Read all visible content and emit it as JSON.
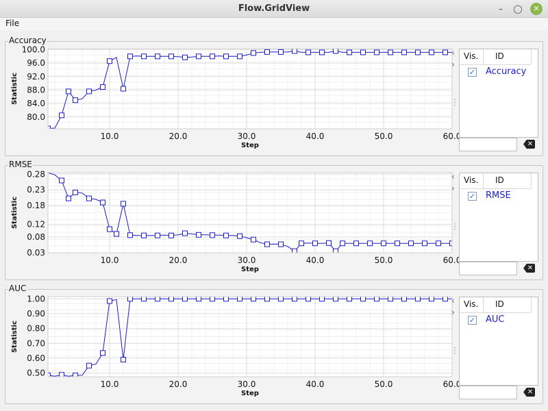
{
  "window": {
    "title": "Flow.GridView"
  },
  "menu": {
    "file": "File"
  },
  "legend_header": {
    "vis": "Vis.",
    "id": "ID"
  },
  "panels": [
    {
      "label": "Accuracy",
      "legend_item": "Accuracy",
      "chart_data": {
        "type": "line",
        "ylabel": "Statistic",
        "xlabel": "Step",
        "xlim": [
          1,
          60
        ],
        "ylim": [
          76.5,
          100.3
        ],
        "yticks": [
          80.0,
          84.0,
          88.0,
          92.0,
          96.0,
          100.0
        ],
        "ytick_labels": [
          "80.0",
          "84.0",
          "88.0",
          "92.0",
          "96.0",
          "100.0"
        ],
        "xticks": [
          10,
          20,
          30,
          40,
          50,
          60
        ],
        "xtick_labels": [
          "10.0",
          "20.0",
          "30.0",
          "40.0",
          "50.0",
          "60.0"
        ],
        "series": [
          {
            "name": "Accuracy",
            "x": [
              1,
              2,
              3,
              4,
              5,
              6,
              7,
              8,
              9,
              10,
              11,
              12,
              13,
              14,
              15,
              16,
              17,
              18,
              19,
              20,
              21,
              22,
              23,
              24,
              25,
              26,
              27,
              28,
              29,
              30,
              31,
              32,
              33,
              34,
              35,
              36,
              37,
              38,
              39,
              40,
              41,
              42,
              43,
              44,
              45,
              46,
              47,
              48,
              49,
              50,
              51,
              52,
              53,
              54,
              55,
              56,
              57,
              58,
              59,
              60
            ],
            "y": [
              76.6,
              76.7,
              80.5,
              87.6,
              85.0,
              85.4,
              87.6,
              88.0,
              88.9,
              96.6,
              97.7,
              88.4,
              98.0,
              98.1,
              98.0,
              98.0,
              98.0,
              98.0,
              98.0,
              97.9,
              97.7,
              97.8,
              98.0,
              98.0,
              98.0,
              98.1,
              98.0,
              98.0,
              98.0,
              98.4,
              99.0,
              99.2,
              99.3,
              99.3,
              99.3,
              99.3,
              99.6,
              99.2,
              99.2,
              99.2,
              99.2,
              99.2,
              99.6,
              99.2,
              99.2,
              99.2,
              99.2,
              99.2,
              99.2,
              99.2,
              99.2,
              99.2,
              99.2,
              99.2,
              99.2,
              99.2,
              99.2,
              99.2,
              99.2,
              99.2
            ],
            "markers": [
              1,
              3,
              4,
              5,
              7,
              9,
              10,
              12,
              13,
              15,
              17,
              19,
              21,
              23,
              25,
              27,
              29,
              31,
              33,
              35,
              37,
              39,
              41,
              43,
              45,
              47,
              49,
              51,
              53,
              55,
              57,
              59
            ]
          }
        ]
      }
    },
    {
      "label": "RMSE",
      "legend_item": "RMSE",
      "chart_data": {
        "type": "line",
        "ylabel": "Statistic",
        "xlabel": "Step",
        "xlim": [
          1,
          60
        ],
        "ylim": [
          0.03,
          0.285
        ],
        "yticks": [
          0.03,
          0.08,
          0.12,
          0.18,
          0.23,
          0.28
        ],
        "ytick_labels": [
          "0.03",
          "0.08",
          "0.12",
          "0.18",
          "0.23",
          "0.28"
        ],
        "xticks": [
          10,
          20,
          30,
          40,
          50,
          60
        ],
        "xtick_labels": [
          "10.0",
          "20.0",
          "30.0",
          "40.0",
          "50.0",
          "60.0"
        ],
        "series": [
          {
            "name": "RMSE",
            "x": [
              1,
              2,
              3,
              4,
              5,
              6,
              7,
              8,
              9,
              10,
              11,
              12,
              13,
              14,
              15,
              16,
              17,
              18,
              19,
              20,
              21,
              22,
              23,
              24,
              25,
              26,
              27,
              28,
              29,
              30,
              31,
              32,
              33,
              34,
              35,
              36,
              37,
              38,
              39,
              40,
              41,
              42,
              43,
              44,
              45,
              46,
              47,
              48,
              49,
              50,
              51,
              52,
              53,
              54,
              55,
              56,
              57,
              58,
              59,
              60
            ],
            "y": [
              0.285,
              0.278,
              0.26,
              0.203,
              0.222,
              0.22,
              0.203,
              0.2,
              0.19,
              0.105,
              0.09,
              0.186,
              0.086,
              0.085,
              0.085,
              0.085,
              0.085,
              0.086,
              0.085,
              0.087,
              0.092,
              0.09,
              0.087,
              0.087,
              0.086,
              0.086,
              0.085,
              0.085,
              0.083,
              0.078,
              0.072,
              0.062,
              0.057,
              0.058,
              0.057,
              0.05,
              0.035,
              0.06,
              0.061,
              0.06,
              0.06,
              0.061,
              0.035,
              0.06,
              0.06,
              0.06,
              0.06,
              0.06,
              0.06,
              0.06,
              0.06,
              0.06,
              0.06,
              0.06,
              0.06,
              0.06,
              0.06,
              0.06,
              0.06,
              0.06
            ],
            "markers": [
              3,
              4,
              5,
              7,
              9,
              10,
              11,
              12,
              13,
              15,
              17,
              19,
              21,
              23,
              25,
              27,
              29,
              31,
              33,
              35,
              37,
              38,
              40,
              42,
              43,
              44,
              46,
              48,
              50,
              52,
              54,
              56,
              58,
              60
            ]
          }
        ]
      }
    },
    {
      "label": "AUC",
      "legend_item": "AUC",
      "chart_data": {
        "type": "line",
        "ylabel": "Statistic",
        "xlabel": "Step",
        "xlim": [
          1,
          60
        ],
        "ylim": [
          0.475,
          1.015
        ],
        "yticks": [
          0.5,
          0.6,
          0.7,
          0.8,
          0.9,
          1.0
        ],
        "ytick_labels": [
          "0.50",
          "0.60",
          "0.70",
          "0.80",
          "0.90",
          "1.00"
        ],
        "xticks": [
          10,
          20,
          30,
          40,
          50,
          60
        ],
        "xtick_labels": [
          "10.0",
          "20.0",
          "30.0",
          "40.0",
          "50.0",
          "60.0"
        ],
        "series": [
          {
            "name": "AUC",
            "x": [
              1,
              2,
              3,
              4,
              5,
              6,
              7,
              8,
              9,
              10,
              11,
              12,
              13,
              14,
              15,
              16,
              17,
              18,
              19,
              20,
              21,
              22,
              23,
              24,
              25,
              26,
              27,
              28,
              29,
              30,
              31,
              32,
              33,
              34,
              35,
              36,
              37,
              38,
              39,
              40,
              41,
              42,
              43,
              44,
              45,
              46,
              47,
              48,
              49,
              50,
              51,
              52,
              53,
              54,
              55,
              56,
              57,
              58,
              59,
              60
            ],
            "y": [
              0.485,
              0.478,
              0.488,
              0.478,
              0.484,
              0.485,
              0.55,
              0.56,
              0.635,
              0.985,
              0.995,
              0.59,
              1.0,
              1.0,
              1.0,
              1.0,
              1.0,
              1.0,
              1.0,
              1.0,
              1.0,
              1.0,
              1.0,
              1.0,
              1.0,
              1.0,
              1.0,
              1.0,
              1.0,
              1.0,
              1.0,
              1.0,
              1.0,
              1.0,
              1.0,
              1.0,
              1.0,
              1.0,
              1.0,
              1.0,
              1.0,
              1.0,
              1.0,
              1.0,
              1.0,
              1.0,
              1.0,
              1.0,
              1.0,
              1.0,
              1.0,
              1.0,
              1.0,
              1.0,
              1.0,
              1.0,
              1.0,
              1.0,
              1.0,
              1.0
            ],
            "markers": [
              1,
              3,
              5,
              7,
              9,
              10,
              12,
              13,
              15,
              17,
              19,
              21,
              23,
              25,
              27,
              29,
              31,
              33,
              35,
              37,
              39,
              41,
              43,
              45,
              47,
              49,
              51,
              53,
              55,
              57,
              59
            ]
          }
        ]
      }
    }
  ]
}
